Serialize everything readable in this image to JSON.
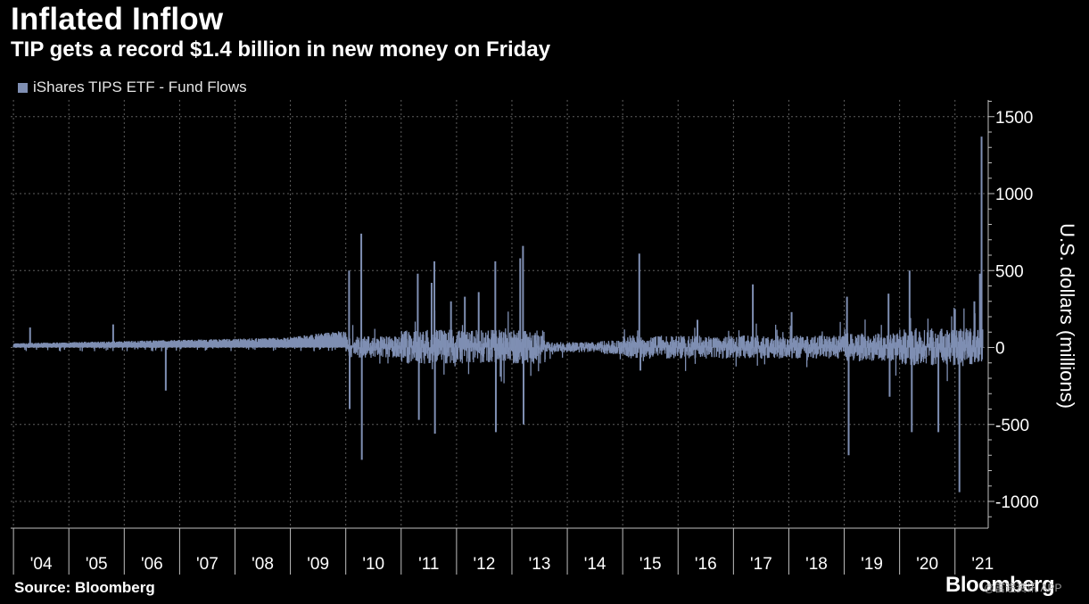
{
  "colors": {
    "background": "#000000",
    "series": "#7f8fb3",
    "grid": "#5e5e5e",
    "axis": "#bfbfbf",
    "text": "#ffffff"
  },
  "chart_data": {
    "type": "bar",
    "title": "Inflated Inflow",
    "subtitle": "TIP gets a record $1.4 billion in new money on Friday",
    "ylabel": "U.S. dollars (millions)",
    "xlabel": "",
    "ylim": [
      -1150,
      1620
    ],
    "y_ticks": [
      1500,
      1000,
      500,
      0,
      -500,
      -1000
    ],
    "y_tick_labels": [
      "1500",
      "1000",
      "500",
      "0",
      "-500",
      "-1000"
    ],
    "x_range": [
      2003.95,
      2021.6
    ],
    "x_ticks": [
      2004,
      2005,
      2006,
      2007,
      2008,
      2009,
      2010,
      2011,
      2012,
      2013,
      2014,
      2015,
      2016,
      2017,
      2018,
      2019,
      2020,
      2021
    ],
    "x_tick_labels": [
      "'04",
      "'05",
      "'06",
      "'07",
      "'08",
      "'09",
      "'10",
      "'11",
      "'12",
      "'13",
      "'14",
      "'15",
      "'16",
      "'17",
      "'18",
      "'19",
      "'20",
      "'21"
    ],
    "grid": true,
    "legend_position": "top-left",
    "series": [
      {
        "name": "iShares TIPS ETF - Fund Flows",
        "color": "#7f8fb3",
        "notable_points": [
          {
            "x": 2004.3,
            "y": 130
          },
          {
            "x": 2005.8,
            "y": 150
          },
          {
            "x": 2006.75,
            "y": -280
          },
          {
            "x": 2010.06,
            "y": 500
          },
          {
            "x": 2010.07,
            "y": -400
          },
          {
            "x": 2010.28,
            "y": 740
          },
          {
            "x": 2010.29,
            "y": -730
          },
          {
            "x": 2011.3,
            "y": 480
          },
          {
            "x": 2011.32,
            "y": -470
          },
          {
            "x": 2011.55,
            "y": 420
          },
          {
            "x": 2011.6,
            "y": 560
          },
          {
            "x": 2011.61,
            "y": -560
          },
          {
            "x": 2011.9,
            "y": 300
          },
          {
            "x": 2012.15,
            "y": 330
          },
          {
            "x": 2012.4,
            "y": 360
          },
          {
            "x": 2012.7,
            "y": 560
          },
          {
            "x": 2012.71,
            "y": -550
          },
          {
            "x": 2013.15,
            "y": 580
          },
          {
            "x": 2013.2,
            "y": 660
          },
          {
            "x": 2013.21,
            "y": -500
          },
          {
            "x": 2015.3,
            "y": 610
          },
          {
            "x": 2015.32,
            "y": -150
          },
          {
            "x": 2016.35,
            "y": 180
          },
          {
            "x": 2017.35,
            "y": 410
          },
          {
            "x": 2018.05,
            "y": 230
          },
          {
            "x": 2019.05,
            "y": 330
          },
          {
            "x": 2019.08,
            "y": -700
          },
          {
            "x": 2019.8,
            "y": 350
          },
          {
            "x": 2019.82,
            "y": -320
          },
          {
            "x": 2020.18,
            "y": 500
          },
          {
            "x": 2020.22,
            "y": -550
          },
          {
            "x": 2020.7,
            "y": -550
          },
          {
            "x": 2021.0,
            "y": 250
          },
          {
            "x": 2021.08,
            "y": -940
          },
          {
            "x": 2021.35,
            "y": 300
          },
          {
            "x": 2021.45,
            "y": 480
          },
          {
            "x": 2021.48,
            "y": 1370
          }
        ]
      }
    ]
  },
  "footer": {
    "source": "Source: Bloomberg",
    "brand": "Bloomberg",
    "watermark": "@富途资讯 APP"
  }
}
